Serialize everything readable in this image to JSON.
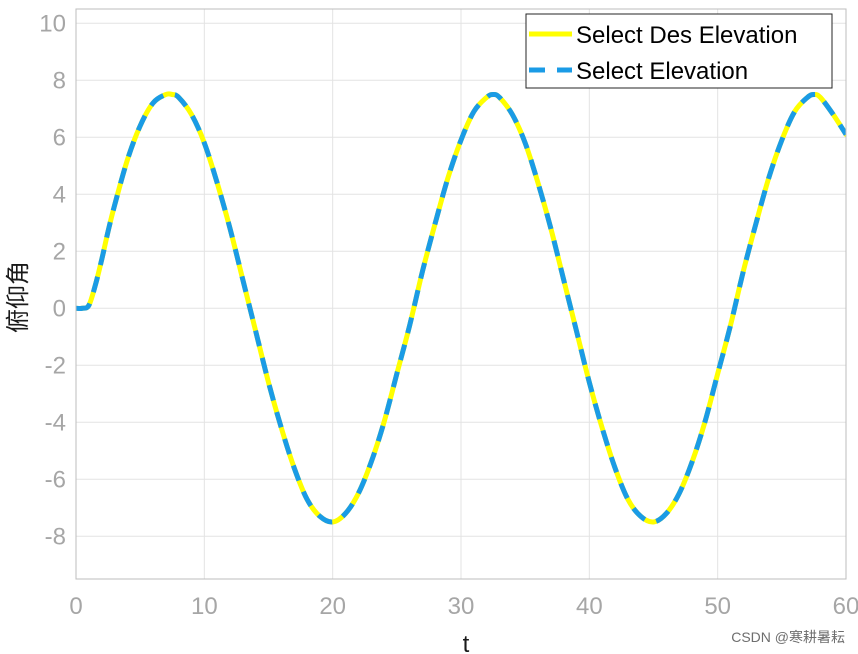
{
  "chart_data": {
    "type": "line",
    "xlabel": "t",
    "ylabel": "俯仰角",
    "xlim": [
      0,
      60
    ],
    "ylim": [
      -9.5,
      10.5
    ],
    "grid": true,
    "legend_position": "top-right",
    "x_ticks": [
      0,
      10,
      20,
      30,
      40,
      50,
      60
    ],
    "y_ticks": [
      -8,
      -6,
      -4,
      -2,
      0,
      2,
      4,
      6,
      8,
      10
    ],
    "x_tick_labels": [
      "0",
      "10",
      "20",
      "30",
      "40",
      "50",
      "60"
    ],
    "y_tick_labels": [
      "-8",
      "-6",
      "-4",
      "-2",
      "0",
      "2",
      "4",
      "6",
      "8",
      "10"
    ],
    "series": [
      {
        "name": "Select Des Elevation",
        "color": "#ffff00",
        "line_style": "solid",
        "x": [
          0,
          0.5,
          1.0,
          1.5,
          2.0,
          2.5,
          3.0,
          4.0,
          5.0,
          6.0,
          7.0,
          7.5,
          8.0,
          9.0,
          10.0,
          11.0,
          12.0,
          13.0,
          14.0,
          15.0,
          16.0,
          17.0,
          18.0,
          19.0,
          20.0,
          21.0,
          22.0,
          23.0,
          24.0,
          25.0,
          26.0,
          27.0,
          28.0,
          29.0,
          30.0,
          31.0,
          32.0,
          32.5,
          33.0,
          34.0,
          35.0,
          36.0,
          37.0,
          38.0,
          39.0,
          40.0,
          41.0,
          42.0,
          43.0,
          44.0,
          45.0,
          46.0,
          47.0,
          48.0,
          49.0,
          50.0,
          51.0,
          52.0,
          53.0,
          54.0,
          55.0,
          56.0,
          57.0,
          57.5,
          58.0,
          59.0,
          60.0
        ],
        "y": [
          0,
          0,
          0.1,
          0.8,
          1.7,
          2.7,
          3.6,
          5.2,
          6.4,
          7.2,
          7.5,
          7.5,
          7.4,
          6.8,
          5.8,
          4.4,
          2.8,
          1.0,
          -0.8,
          -2.6,
          -4.2,
          -5.6,
          -6.7,
          -7.3,
          -7.5,
          -7.2,
          -6.5,
          -5.4,
          -4.0,
          -2.3,
          -0.6,
          1.3,
          3.0,
          4.6,
          5.9,
          6.9,
          7.4,
          7.5,
          7.4,
          6.8,
          5.8,
          4.4,
          2.8,
          1.0,
          -0.8,
          -2.6,
          -4.2,
          -5.6,
          -6.7,
          -7.3,
          -7.5,
          -7.2,
          -6.5,
          -5.4,
          -4.0,
          -2.3,
          -0.6,
          1.3,
          3.0,
          4.6,
          5.9,
          6.9,
          7.4,
          7.5,
          7.4,
          6.8,
          6.1
        ]
      },
      {
        "name": "Select Elevation",
        "color": "#1a9be6",
        "line_style": "dashed",
        "x": [
          0,
          0.5,
          1.0,
          1.5,
          2.0,
          2.5,
          3.0,
          4.0,
          5.0,
          6.0,
          7.0,
          7.5,
          8.0,
          9.0,
          10.0,
          11.0,
          12.0,
          13.0,
          14.0,
          15.0,
          16.0,
          17.0,
          18.0,
          19.0,
          20.0,
          21.0,
          22.0,
          23.0,
          24.0,
          25.0,
          26.0,
          27.0,
          28.0,
          29.0,
          30.0,
          31.0,
          32.0,
          32.5,
          33.0,
          34.0,
          35.0,
          36.0,
          37.0,
          38.0,
          39.0,
          40.0,
          41.0,
          42.0,
          43.0,
          44.0,
          45.0,
          46.0,
          47.0,
          48.0,
          49.0,
          50.0,
          51.0,
          52.0,
          53.0,
          54.0,
          55.0,
          56.0,
          57.0,
          57.5,
          58.0,
          59.0,
          60.0
        ],
        "y": [
          0,
          0,
          0.1,
          0.8,
          1.7,
          2.7,
          3.6,
          5.2,
          6.4,
          7.2,
          7.5,
          7.5,
          7.4,
          6.8,
          5.8,
          4.4,
          2.8,
          1.0,
          -0.8,
          -2.6,
          -4.2,
          -5.6,
          -6.7,
          -7.3,
          -7.5,
          -7.2,
          -6.5,
          -5.4,
          -4.0,
          -2.3,
          -0.6,
          1.3,
          3.0,
          4.6,
          5.9,
          6.9,
          7.4,
          7.5,
          7.4,
          6.8,
          5.8,
          4.4,
          2.8,
          1.0,
          -0.8,
          -2.6,
          -4.2,
          -5.6,
          -6.7,
          -7.3,
          -7.5,
          -7.2,
          -6.5,
          -5.4,
          -4.0,
          -2.3,
          -0.6,
          1.3,
          3.0,
          4.6,
          5.9,
          6.9,
          7.4,
          7.5,
          7.4,
          6.8,
          6.1
        ]
      }
    ]
  },
  "watermark": {
    "text": "CSDN @寒耕暑耘"
  }
}
